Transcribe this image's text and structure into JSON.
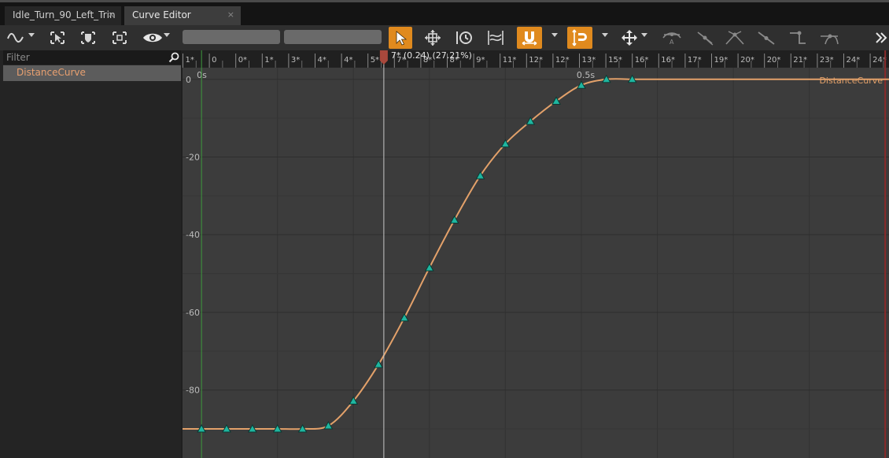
{
  "tabs": [
    {
      "label": "Idle_Turn_90_Left_Trin",
      "close": "×"
    },
    {
      "label": "Curve Editor",
      "close": "×"
    }
  ],
  "toolbar": {
    "icons": [
      "curve-icon",
      "select-frame-icon",
      "shield-icon",
      "fit-icon",
      "eye-icon",
      "select-arrow-icon",
      "transform-icon",
      "retime-icon",
      "multiscale-icon",
      "snap-magnet-icon",
      "snap-axis-icon",
      "move-icon",
      "tangent-auto-icon",
      "tangent-user-icon",
      "tangent-break-icon",
      "tangent-linear-icon",
      "tangent-constant-icon",
      "tangent-weighted-icon",
      "overflow-icon"
    ],
    "accent_color": "#e08a1e"
  },
  "sidebar": {
    "filter_placeholder": "Filter",
    "items": [
      {
        "label": "DistanceCurve",
        "color": "#e8a070"
      }
    ]
  },
  "timeline": {
    "ruler_labels": [
      "1*",
      "0",
      "0*",
      "1*",
      "3*",
      "4*",
      "4*",
      "5*",
      "7*",
      "8*",
      "8*",
      "9*",
      "11*",
      "12*",
      "12*",
      "13*",
      "15*",
      "16*",
      "16*",
      "17*",
      "19*",
      "20*",
      "20*",
      "21*",
      "23*",
      "24*",
      "24*"
    ],
    "time_labels": [
      "0s",
      "0.5s"
    ],
    "playhead_label": "7* (0.24) (27.21%)"
  },
  "chart_data": {
    "type": "line",
    "series": [
      {
        "name": "DistanceCurve",
        "color": "#e3a16a",
        "keys": [
          {
            "t": 0.0,
            "v": -90.0
          },
          {
            "t": 0.033,
            "v": -90.0
          },
          {
            "t": 0.067,
            "v": -90.0
          },
          {
            "t": 0.1,
            "v": -90.0
          },
          {
            "t": 0.133,
            "v": -90.0
          },
          {
            "t": 0.167,
            "v": -89.2
          },
          {
            "t": 0.2,
            "v": -82.8
          },
          {
            "t": 0.233,
            "v": -73.4
          },
          {
            "t": 0.267,
            "v": -61.4
          },
          {
            "t": 0.3,
            "v": -48.5
          },
          {
            "t": 0.333,
            "v": -36.2
          },
          {
            "t": 0.367,
            "v": -24.8
          },
          {
            "t": 0.4,
            "v": -16.6
          },
          {
            "t": 0.433,
            "v": -10.8
          },
          {
            "t": 0.467,
            "v": -5.6
          },
          {
            "t": 0.5,
            "v": -1.5
          },
          {
            "t": 0.533,
            "v": 0.0
          },
          {
            "t": 0.567,
            "v": 0.0
          }
        ]
      }
    ],
    "y_ticks": [
      0,
      -20,
      -40,
      -60,
      -80
    ],
    "x_tick_labels": [
      "0s",
      "0.5s"
    ],
    "xlim": [
      -0.025,
      0.905
    ],
    "ylim": [
      -97.5,
      3.0
    ],
    "end_time": 0.9,
    "playhead_time": 0.24,
    "curve_label": "DistanceCurve",
    "grid": true,
    "background": "#3c3c3c",
    "key_color": "#1fb6a0"
  }
}
